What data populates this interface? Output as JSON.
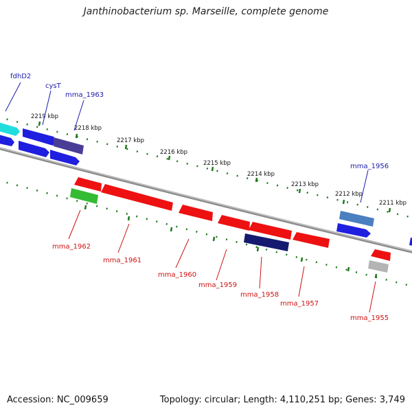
{
  "title": "Janthinobacterium sp. Marseille, complete genome",
  "accession": "Accession: NC_009659",
  "summary": "Topology: circular; Length: 4,110,251 bp; Genes: 3,749",
  "colors": {
    "forward_label": "#1a1aaa",
    "reverse_label": "#cc1111",
    "tick": "#1e7a1e",
    "backbone": "#8c8c8c"
  },
  "ticks": [
    {
      "label": "2219 kbp"
    },
    {
      "label": "2218 kbp"
    },
    {
      "label": "2217 kbp"
    },
    {
      "label": "2216 kbp"
    },
    {
      "label": "2215 kbp"
    },
    {
      "label": "2214 kbp"
    },
    {
      "label": "2213 kbp"
    },
    {
      "label": "2212 kbp"
    },
    {
      "label": "2211 kbp"
    }
  ],
  "gene_labels": [
    {
      "text": "fdhD2",
      "strand": "forward"
    },
    {
      "text": "cysT",
      "strand": "forward"
    },
    {
      "text": "mma_1963",
      "strand": "forward"
    },
    {
      "text": "mma_1956",
      "strand": "forward"
    },
    {
      "text": "mma_1962",
      "strand": "reverse"
    },
    {
      "text": "mma_1961",
      "strand": "reverse"
    },
    {
      "text": "mma_1960",
      "strand": "reverse"
    },
    {
      "text": "mma_1959",
      "strand": "reverse"
    },
    {
      "text": "mma_1958",
      "strand": "reverse"
    },
    {
      "text": "mma_1957",
      "strand": "reverse"
    },
    {
      "text": "mma_1955",
      "strand": "reverse"
    }
  ]
}
